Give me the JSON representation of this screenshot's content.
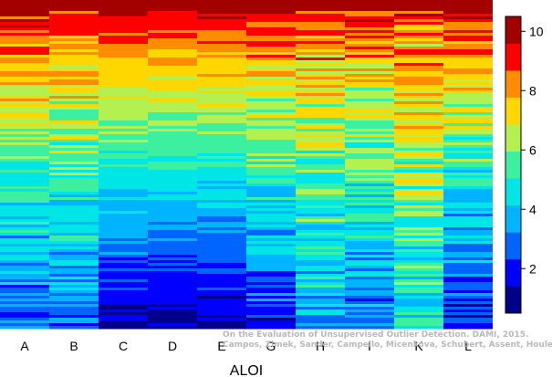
{
  "chart_data": {
    "type": "heatmap",
    "title": "",
    "xlabel": "ALOI",
    "ylabel": "",
    "columns": [
      "A",
      "B",
      "C",
      "D",
      "E",
      "G",
      "H",
      "I",
      "K",
      "L"
    ],
    "colorbar": {
      "min": 0.5,
      "max": 10.5,
      "ticks": [
        "2",
        "4",
        "6",
        "8",
        "10"
      ],
      "colors": [
        "#00008b",
        "#0000ff",
        "#0064ff",
        "#00b4ff",
        "#00e6e6",
        "#3cf0a0",
        "#b4f050",
        "#ffd700",
        "#ff8c00",
        "#ff0000",
        "#a50000"
      ]
    },
    "columns_profile": [
      {
        "name": "A",
        "top": 10.0,
        "bottom": 2.5,
        "noise": 2.2
      },
      {
        "name": "B",
        "top": 9.8,
        "bottom": 2.6,
        "noise": 2.3
      },
      {
        "name": "C",
        "top": 10.5,
        "bottom": 1.2,
        "noise": 1.0
      },
      {
        "name": "D",
        "top": 10.5,
        "bottom": 1.0,
        "noise": 0.9
      },
      {
        "name": "E",
        "top": 10.5,
        "bottom": 1.0,
        "noise": 1.0
      },
      {
        "name": "G",
        "top": 9.8,
        "bottom": 2.0,
        "noise": 2.2
      },
      {
        "name": "H",
        "top": 9.5,
        "bottom": 3.5,
        "noise": 2.6
      },
      {
        "name": "I",
        "top": 9.6,
        "bottom": 2.8,
        "noise": 2.4
      },
      {
        "name": "K",
        "top": 9.2,
        "bottom": 4.5,
        "noise": 2.8
      },
      {
        "name": "L",
        "top": 10.0,
        "bottom": 2.0,
        "noise": 2.2
      }
    ]
  },
  "watermark": {
    "line1": "On the Evaluation of Unsupervised Outlier Detection. DAMI, 2015.",
    "line2": "Campos, Zimek, Sander, Campello, Micenkova, Schubert, Assent, Houle"
  }
}
